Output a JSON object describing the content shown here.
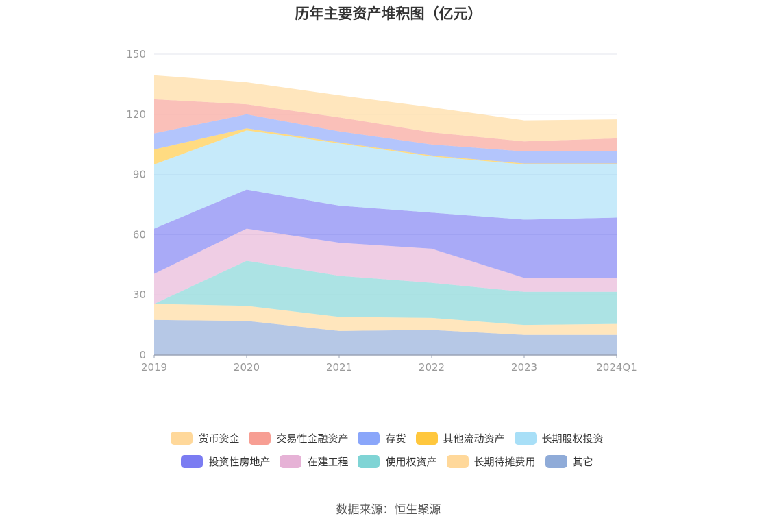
{
  "chart_data": {
    "type": "area",
    "stacked": true,
    "title": "历年主要资产堆积图（亿元）",
    "categories": [
      "2019",
      "2020",
      "2021",
      "2022",
      "2023",
      "2024Q1"
    ],
    "yticks": [
      "0",
      "30",
      "60",
      "90",
      "120",
      "150"
    ],
    "ylim": [
      0,
      150
    ],
    "grid": true,
    "legend_position": "bottom",
    "series": [
      {
        "name": "其它",
        "color": "#8fabd8",
        "values": [
          17.5,
          17.0,
          12.0,
          12.5,
          10.0,
          10.0
        ]
      },
      {
        "name": "长期待摊费用",
        "color": "#ffd89a",
        "values": [
          8.0,
          7.5,
          7.0,
          6.0,
          5.0,
          5.5
        ]
      },
      {
        "name": "使用权资产",
        "color": "#7fd4d5",
        "values": [
          0.0,
          22.5,
          20.5,
          17.5,
          16.5,
          16.0
        ]
      },
      {
        "name": "在建工程",
        "color": "#e6b2d6",
        "values": [
          15.0,
          16.0,
          16.5,
          17.0,
          7.0,
          7.0
        ]
      },
      {
        "name": "投资性房地产",
        "color": "#7b7cf2",
        "values": [
          22.5,
          19.5,
          18.5,
          18.0,
          29.0,
          30.0
        ]
      },
      {
        "name": "长期股权投资",
        "color": "#a8dff7",
        "values": [
          32.0,
          29.5,
          31.0,
          28.0,
          27.5,
          26.5
        ]
      },
      {
        "name": "其他流动资产",
        "color": "#ffc73d",
        "values": [
          7.5,
          1.0,
          0.5,
          0.5,
          0.5,
          0.5
        ]
      },
      {
        "name": "存货",
        "color": "#8aa6fa",
        "values": [
          8.0,
          7.0,
          5.5,
          5.5,
          6.0,
          6.0
        ]
      },
      {
        "name": "交易性金融资产",
        "color": "#f79e93",
        "values": [
          17.0,
          5.0,
          7.0,
          6.0,
          5.0,
          6.5
        ]
      },
      {
        "name": "货币资金",
        "color": "#ffd89a",
        "values": [
          12.0,
          11.0,
          11.0,
          12.5,
          10.5,
          9.5
        ]
      }
    ],
    "legend_order": [
      "货币资金",
      "交易性金融资产",
      "存货",
      "其他流动资产",
      "长期股权投资",
      "投资性房地产",
      "在建工程",
      "使用权资产",
      "长期待摊费用",
      "其它"
    ]
  },
  "source": "数据来源：恒生聚源"
}
